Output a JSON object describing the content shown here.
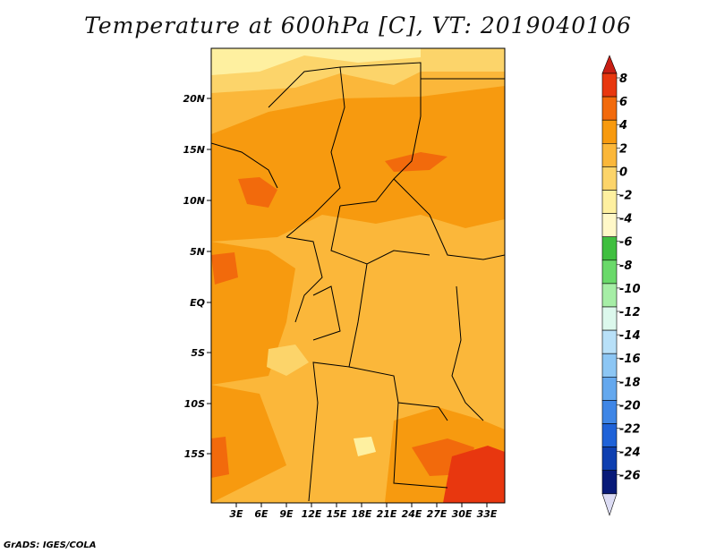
{
  "title": "Temperature at 600hPa [C], VT: 2019040106",
  "credit": "GrADS: IGES/COLA",
  "map": {
    "lat_labels": [
      "20N",
      "15N",
      "10N",
      "5N",
      "EQ",
      "5S",
      "10S",
      "15S"
    ],
    "lon_labels": [
      "3E",
      "6E",
      "9E",
      "12E",
      "15E",
      "18E",
      "21E",
      "24E",
      "27E",
      "30E",
      "33E"
    ]
  },
  "colorbar": {
    "labels": [
      "8",
      "6",
      "4",
      "2",
      "0",
      "-2",
      "-4",
      "-6",
      "-8",
      "-10",
      "-12",
      "-14",
      "-16",
      "-18",
      "-20",
      "-22",
      "-24",
      "-26"
    ],
    "colors": {
      "top_triangle": "#c81e14",
      "bins": [
        "#e8370f",
        "#f26a0c",
        "#f79a0f",
        "#fbb73a",
        "#fcd46a",
        "#fef0a0",
        "#fff8c8",
        "#3fbf3f",
        "#6ad96a",
        "#a6eea6",
        "#dcf8ec",
        "#b8e0f8",
        "#8cc6f4",
        "#64a8ee",
        "#3f86e6",
        "#1f62d8",
        "#0e3fb0",
        "#081a78"
      ],
      "bottom_triangle": "#dcdcf4"
    }
  },
  "field_colors": {
    "background": "#fbb73a",
    "warm": "#f79a0f",
    "warmer": "#f26a0c",
    "hot": "#e8370f",
    "cool": "#fcd46a",
    "cooler": "#fef0a0"
  }
}
